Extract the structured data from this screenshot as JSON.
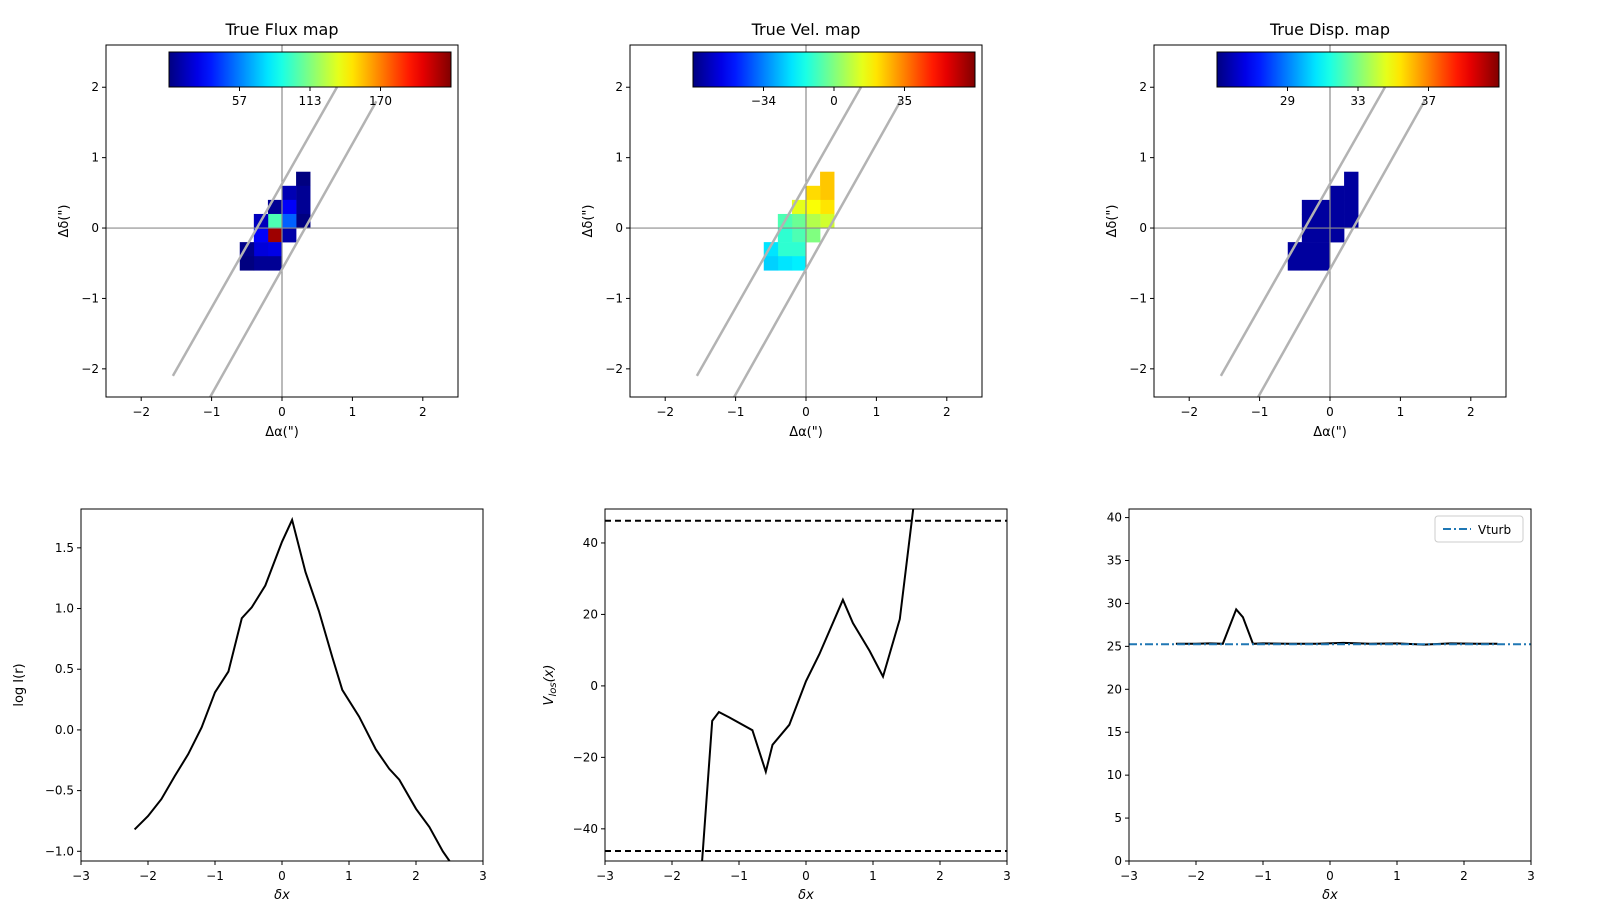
{
  "chart_data": [
    {
      "type": "heatmap",
      "title": "True Flux map",
      "xlabel": "Δα(\")",
      "ylabel": "Δδ(\")",
      "xlim": [
        -2.5,
        2.5
      ],
      "ylim": [
        -2.4,
        2.6
      ],
      "xticks": [
        "−2",
        "−1",
        "0",
        "1",
        "2"
      ],
      "yticks": [
        "−2",
        "−1",
        "0",
        "1",
        "2"
      ],
      "colormap": "jet",
      "colorbar_ticks": [
        {
          "label": "57",
          "frac": 0.25
        },
        {
          "label": "113",
          "frac": 0.5
        },
        {
          "label": "170",
          "frac": 0.75
        }
      ],
      "slit_lines": [
        {
          "x": [
            -1.55,
            0.78
          ],
          "y": [
            -2.1,
            2.0
          ]
        },
        {
          "x": [
            -1.02,
            1.34
          ],
          "y": [
            -2.4,
            1.8
          ]
        }
      ],
      "pixel_size": 0.2,
      "pixels": [
        {
          "x": 0.3,
          "y": 0.7,
          "v": 0.0
        },
        {
          "x": 0.3,
          "y": 0.5,
          "v": 0.02
        },
        {
          "x": 0.3,
          "y": 0.3,
          "v": 0.02
        },
        {
          "x": 0.3,
          "y": 0.1,
          "v": 0.0
        },
        {
          "x": 0.1,
          "y": 0.5,
          "v": 0.05
        },
        {
          "x": 0.1,
          "y": 0.3,
          "v": 0.12
        },
        {
          "x": 0.1,
          "y": 0.1,
          "v": 0.22
        },
        {
          "x": 0.1,
          "y": -0.1,
          "v": 0.04
        },
        {
          "x": -0.1,
          "y": 0.3,
          "v": 0.02
        },
        {
          "x": -0.1,
          "y": 0.1,
          "v": 0.45
        },
        {
          "x": -0.1,
          "y": -0.1,
          "v": 0.97
        },
        {
          "x": -0.1,
          "y": -0.3,
          "v": 0.1
        },
        {
          "x": -0.1,
          "y": -0.5,
          "v": 0.02
        },
        {
          "x": -0.3,
          "y": 0.1,
          "v": 0.06
        },
        {
          "x": -0.3,
          "y": -0.1,
          "v": 0.12
        },
        {
          "x": -0.3,
          "y": -0.3,
          "v": 0.09
        },
        {
          "x": -0.3,
          "y": -0.5,
          "v": 0.02
        },
        {
          "x": -0.5,
          "y": -0.3,
          "v": 0.01
        },
        {
          "x": -0.5,
          "y": -0.5,
          "v": 0.0
        }
      ]
    },
    {
      "type": "heatmap",
      "title": "True Vel. map",
      "xlabel": "Δα(\")",
      "ylabel": "Δδ(\")",
      "xlim": [
        -2.5,
        2.5
      ],
      "ylim": [
        -2.4,
        2.6
      ],
      "xticks": [
        "−2",
        "−1",
        "0",
        "1",
        "2"
      ],
      "yticks": [
        "−2",
        "−1",
        "0",
        "1",
        "2"
      ],
      "colormap": "jet",
      "colorbar_ticks": [
        {
          "label": "−34",
          "frac": 0.25
        },
        {
          "label": "0",
          "frac": 0.5
        },
        {
          "label": "35",
          "frac": 0.75
        }
      ],
      "slit_lines": [
        {
          "x": [
            -1.55,
            0.78
          ],
          "y": [
            -2.1,
            2.0
          ]
        },
        {
          "x": [
            -1.02,
            1.34
          ],
          "y": [
            -2.4,
            1.8
          ]
        }
      ],
      "pixel_size": 0.2,
      "pixels": [
        {
          "x": 0.3,
          "y": 0.7,
          "v": 0.68
        },
        {
          "x": 0.3,
          "y": 0.5,
          "v": 0.68
        },
        {
          "x": 0.3,
          "y": 0.3,
          "v": 0.65
        },
        {
          "x": 0.3,
          "y": 0.1,
          "v": 0.58
        },
        {
          "x": 0.1,
          "y": 0.5,
          "v": 0.66
        },
        {
          "x": 0.1,
          "y": 0.3,
          "v": 0.62
        },
        {
          "x": 0.1,
          "y": 0.1,
          "v": 0.55
        },
        {
          "x": 0.1,
          "y": -0.1,
          "v": 0.5
        },
        {
          "x": -0.1,
          "y": 0.3,
          "v": 0.6
        },
        {
          "x": -0.1,
          "y": 0.1,
          "v": 0.48
        },
        {
          "x": -0.1,
          "y": -0.1,
          "v": 0.45
        },
        {
          "x": -0.1,
          "y": -0.3,
          "v": 0.42
        },
        {
          "x": -0.1,
          "y": -0.5,
          "v": 0.36
        },
        {
          "x": -0.3,
          "y": 0.1,
          "v": 0.45
        },
        {
          "x": -0.3,
          "y": -0.1,
          "v": 0.42
        },
        {
          "x": -0.3,
          "y": -0.3,
          "v": 0.42
        },
        {
          "x": -0.3,
          "y": -0.5,
          "v": 0.35
        },
        {
          "x": -0.5,
          "y": -0.3,
          "v": 0.35
        },
        {
          "x": -0.5,
          "y": -0.5,
          "v": 0.33
        }
      ]
    },
    {
      "type": "heatmap",
      "title": "True Disp. map",
      "xlabel": "Δα(\")",
      "ylabel": "Δδ(\")",
      "xlim": [
        -2.5,
        2.5
      ],
      "ylim": [
        -2.4,
        2.6
      ],
      "xticks": [
        "−2",
        "−1",
        "0",
        "1",
        "2"
      ],
      "yticks": [
        "−2",
        "−1",
        "0",
        "1",
        "2"
      ],
      "colormap": "jet",
      "colorbar_ticks": [
        {
          "label": "29",
          "frac": 0.25
        },
        {
          "label": "33",
          "frac": 0.5
        },
        {
          "label": "37",
          "frac": 0.75
        }
      ],
      "slit_lines": [
        {
          "x": [
            -1.55,
            0.78
          ],
          "y": [
            -2.1,
            2.0
          ]
        },
        {
          "x": [
            -1.02,
            1.34
          ],
          "y": [
            -2.4,
            1.8
          ]
        }
      ],
      "pixel_size": 0.2,
      "pixels": [
        {
          "x": 0.3,
          "y": 0.7,
          "v": 0.03
        },
        {
          "x": 0.3,
          "y": 0.5,
          "v": 0.03
        },
        {
          "x": 0.3,
          "y": 0.3,
          "v": 0.03
        },
        {
          "x": 0.3,
          "y": 0.1,
          "v": 0.03
        },
        {
          "x": 0.1,
          "y": 0.5,
          "v": 0.03
        },
        {
          "x": 0.1,
          "y": 0.3,
          "v": 0.03
        },
        {
          "x": 0.1,
          "y": 0.1,
          "v": 0.03
        },
        {
          "x": 0.1,
          "y": -0.1,
          "v": 0.03
        },
        {
          "x": -0.1,
          "y": 0.3,
          "v": 0.03
        },
        {
          "x": -0.1,
          "y": 0.1,
          "v": 0.03
        },
        {
          "x": -0.1,
          "y": -0.1,
          "v": 0.03
        },
        {
          "x": -0.1,
          "y": -0.3,
          "v": 0.03
        },
        {
          "x": -0.1,
          "y": -0.5,
          "v": 0.03
        },
        {
          "x": -0.3,
          "y": 0.3,
          "v": 0.03
        },
        {
          "x": -0.3,
          "y": 0.1,
          "v": 0.03
        },
        {
          "x": -0.3,
          "y": -0.1,
          "v": 0.03
        },
        {
          "x": -0.3,
          "y": -0.3,
          "v": 0.03
        },
        {
          "x": -0.3,
          "y": -0.5,
          "v": 0.03
        },
        {
          "x": -0.5,
          "y": -0.3,
          "v": 0.03
        },
        {
          "x": -0.5,
          "y": -0.5,
          "v": 0.03
        }
      ]
    },
    {
      "type": "line",
      "title": "",
      "xlabel": "δx",
      "ylabel": "log I(r)",
      "xlim": [
        -3,
        3
      ],
      "ylim": [
        -1.08,
        1.82
      ],
      "xticks": [
        {
          "v": -3,
          "label": "−3"
        },
        {
          "v": -2,
          "label": "−2"
        },
        {
          "v": -1,
          "label": "−1"
        },
        {
          "v": 0,
          "label": "0"
        },
        {
          "v": 1,
          "label": "1"
        },
        {
          "v": 2,
          "label": "2"
        },
        {
          "v": 3,
          "label": "3"
        }
      ],
      "yticks": [
        {
          "v": -1.0,
          "label": "−1.0"
        },
        {
          "v": -0.5,
          "label": "−0.5"
        },
        {
          "v": 0.0,
          "label": "0.0"
        },
        {
          "v": 0.5,
          "label": "0.5"
        },
        {
          "v": 1.0,
          "label": "1.0"
        },
        {
          "v": 1.5,
          "label": "1.5"
        }
      ],
      "series": [
        {
          "color": "#000000",
          "dash": "",
          "x": [
            -2.2,
            -2.0,
            -1.8,
            -1.6,
            -1.4,
            -1.2,
            -1.0,
            -0.8,
            -0.6,
            -0.45,
            -0.25,
            0.0,
            0.15,
            0.35,
            0.55,
            0.75,
            0.9,
            1.15,
            1.4,
            1.6,
            1.75,
            2.0,
            2.2,
            2.4,
            2.5
          ],
          "y": [
            -0.82,
            -0.71,
            -0.57,
            -0.38,
            -0.2,
            0.02,
            0.31,
            0.48,
            0.92,
            1.01,
            1.19,
            1.55,
            1.73,
            1.3,
            0.98,
            0.6,
            0.33,
            0.11,
            -0.16,
            -0.32,
            -0.41,
            -0.65,
            -0.8,
            -1.0,
            -1.08
          ]
        }
      ]
    },
    {
      "type": "line",
      "title": "",
      "xlabel": "δx",
      "ylabel": "V_los(x)",
      "xlim": [
        -3,
        3
      ],
      "ylim": [
        -49,
        49.5
      ],
      "xticks": [
        {
          "v": -3,
          "label": "−3"
        },
        {
          "v": -2,
          "label": "−2"
        },
        {
          "v": -1,
          "label": "−1"
        },
        {
          "v": 0,
          "label": "0"
        },
        {
          "v": 1,
          "label": "1"
        },
        {
          "v": 2,
          "label": "2"
        },
        {
          "v": 3,
          "label": "3"
        }
      ],
      "yticks": [
        {
          "v": -40,
          "label": "−40"
        },
        {
          "v": -20,
          "label": "−20"
        },
        {
          "v": 0,
          "label": "0"
        },
        {
          "v": 20,
          "label": "20"
        },
        {
          "v": 40,
          "label": "40"
        }
      ],
      "series": [
        {
          "color": "#000000",
          "dash": "",
          "x": [
            -1.55,
            -1.4,
            -1.3,
            -1.15,
            -0.8,
            -0.6,
            -0.5,
            -0.25,
            0.0,
            0.2,
            0.55,
            0.7,
            0.95,
            1.15,
            1.4,
            1.6
          ],
          "y": [
            -49,
            -9.8,
            -7.3,
            -8.8,
            -12.4,
            -24.0,
            -16.5,
            -10.9,
            1.3,
            8.9,
            24.1,
            17.6,
            9.8,
            2.6,
            18.7,
            49.5
          ]
        },
        {
          "color": "#000000",
          "dash": "6,4",
          "x": [
            -3,
            3
          ],
          "y": [
            46.2,
            46.2
          ]
        },
        {
          "color": "#000000",
          "dash": "6,4",
          "x": [
            -3,
            3
          ],
          "y": [
            -46.2,
            -46.2
          ]
        }
      ]
    },
    {
      "type": "line",
      "title": "",
      "xlabel": "δx",
      "ylabel": "",
      "xlim": [
        -3,
        3
      ],
      "ylim": [
        0,
        41
      ],
      "xticks": [
        {
          "v": -3,
          "label": "−3"
        },
        {
          "v": -2,
          "label": "−2"
        },
        {
          "v": -1,
          "label": "−1"
        },
        {
          "v": 0,
          "label": "0"
        },
        {
          "v": 1,
          "label": "1"
        },
        {
          "v": 2,
          "label": "2"
        },
        {
          "v": 3,
          "label": "3"
        }
      ],
      "yticks": [
        {
          "v": 0,
          "label": "0"
        },
        {
          "v": 5,
          "label": "5"
        },
        {
          "v": 10,
          "label": "10"
        },
        {
          "v": 15,
          "label": "15"
        },
        {
          "v": 20,
          "label": "20"
        },
        {
          "v": 25,
          "label": "25"
        },
        {
          "v": 30,
          "label": "30"
        },
        {
          "v": 35,
          "label": "35"
        },
        {
          "v": 40,
          "label": "40"
        }
      ],
      "legend": {
        "placement": "upper right",
        "entries": [
          {
            "label": "Vturb",
            "color": "#1f77b4",
            "dash": "8,3,2,3"
          }
        ]
      },
      "series": [
        {
          "color": "#000000",
          "dash": "",
          "x": [
            -2.3,
            -2.0,
            -1.8,
            -1.6,
            -1.4,
            -1.3,
            -1.15,
            -1.0,
            -0.6,
            -0.2,
            0.2,
            0.6,
            1.0,
            1.4,
            1.8,
            2.2,
            2.5
          ],
          "y": [
            25.3,
            25.3,
            25.35,
            25.3,
            29.3,
            28.4,
            25.3,
            25.35,
            25.3,
            25.3,
            25.4,
            25.3,
            25.35,
            25.2,
            25.35,
            25.3,
            25.3
          ]
        },
        {
          "name": "Vturb",
          "color": "#1f77b4",
          "dash": "8,3,2,3",
          "x": [
            -3,
            3
          ],
          "y": [
            25.25,
            25.25
          ]
        }
      ]
    }
  ]
}
